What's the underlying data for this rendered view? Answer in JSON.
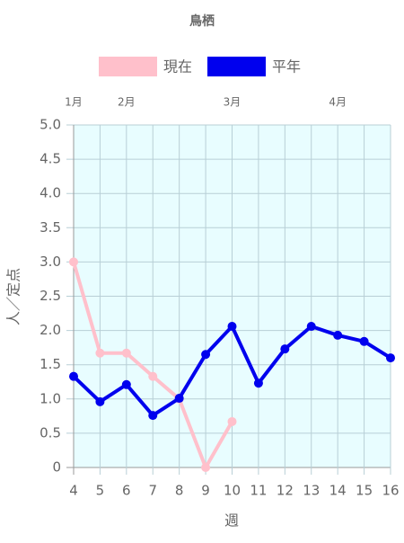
{
  "chart_data": {
    "type": "line",
    "title": "鳥栖",
    "x": [
      4,
      5,
      6,
      7,
      8,
      9,
      10,
      11,
      12,
      13,
      14,
      15,
      16
    ],
    "series": [
      {
        "name": "現在",
        "color": "#ffc0cb",
        "values": [
          3.0,
          1.67,
          1.67,
          1.33,
          1.0,
          0,
          0.67,
          null,
          null,
          null,
          null,
          null,
          null
        ]
      },
      {
        "name": "平年",
        "color": "#0000ee",
        "values": [
          1.33,
          0.96,
          1.21,
          0.76,
          1.01,
          1.65,
          2.06,
          1.23,
          1.73,
          2.06,
          1.93,
          1.84,
          1.6
        ]
      }
    ],
    "xlim": [
      4,
      16
    ],
    "xticks": [
      4,
      5,
      6,
      7,
      8,
      9,
      10,
      11,
      12,
      13,
      14,
      15,
      16
    ],
    "x2ticks": [
      {
        "value": 4,
        "label": "1月"
      },
      {
        "value": 6,
        "label": "2月"
      },
      {
        "value": 10,
        "label": "3月"
      },
      {
        "value": 14,
        "label": "4月"
      }
    ],
    "ylim": [
      0,
      5
    ],
    "yticks": [
      0,
      {
        "value": 0.5,
        "label": "0.5"
      },
      {
        "value": 1,
        "label": "1.0"
      },
      {
        "value": 1.5,
        "label": "1.5"
      },
      {
        "value": 2,
        "label": "2.0"
      },
      {
        "value": 2.5,
        "label": "2.5"
      },
      {
        "value": 3,
        "label": "3.0"
      },
      {
        "value": 3.5,
        "label": "3.5"
      },
      {
        "value": 4,
        "label": "4.0"
      },
      {
        "value": 4.5,
        "label": "4.5"
      },
      {
        "value": 5,
        "label": "5.0"
      }
    ],
    "xlabel": "週",
    "ylabel": "人／定点",
    "grid": true,
    "background": "#e8fdff"
  }
}
